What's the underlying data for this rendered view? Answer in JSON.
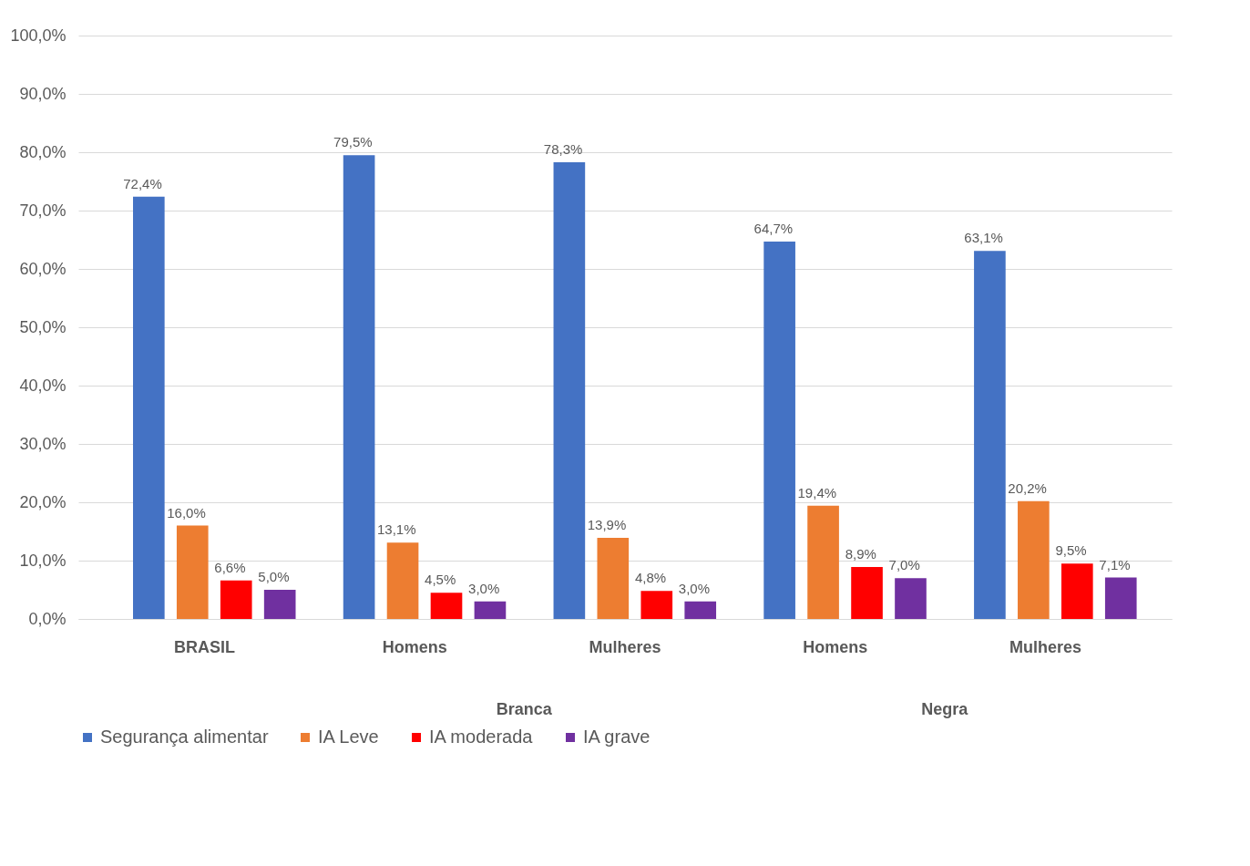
{
  "chart_data": {
    "type": "bar",
    "categories": [
      "BRASIL",
      "Homens",
      "Mulheres",
      "Homens",
      "Mulheres"
    ],
    "series": [
      {
        "name": "Segurança alimentar",
        "color": "#4472c4",
        "values": [
          72.4,
          79.5,
          78.3,
          64.7,
          63.1
        ],
        "value_labels": [
          "72,4%",
          "79,5%",
          "78,3%",
          "64,7%",
          "63,1%"
        ]
      },
      {
        "name": "IA Leve",
        "color": "#ed7d31",
        "values": [
          16.0,
          13.1,
          13.9,
          19.4,
          20.2
        ],
        "value_labels": [
          "16,0%",
          "13,1%",
          "13,9%",
          "19,4%",
          "20,2%"
        ]
      },
      {
        "name": "IA moderada",
        "color": "#ff0000",
        "values": [
          6.6,
          4.5,
          4.8,
          8.9,
          9.5
        ],
        "value_labels": [
          "6,6%",
          "4,5%",
          "4,8%",
          "8,9%",
          "9,5%"
        ]
      },
      {
        "name": "IA grave",
        "color": "#7030a0",
        "values": [
          5.0,
          3.0,
          3.0,
          7.0,
          7.1
        ],
        "value_labels": [
          "5,0%",
          "3,0%",
          "3,0%",
          "7,0%",
          "7,1%"
        ]
      }
    ],
    "annotations": [
      "Branca",
      "Negra"
    ],
    "ylim": [
      0,
      100
    ],
    "yticks": [
      {
        "value": 0,
        "label": "0,0%"
      },
      {
        "value": 10,
        "label": "10,0%"
      },
      {
        "value": 20,
        "label": "20,0%"
      },
      {
        "value": 30,
        "label": "30,0%"
      },
      {
        "value": 40,
        "label": "40,0%"
      },
      {
        "value": 50,
        "label": "50,0%"
      },
      {
        "value": 60,
        "label": "60,0%"
      },
      {
        "value": 70,
        "label": "70,0%"
      },
      {
        "value": 80,
        "label": "80,0%"
      },
      {
        "value": 90,
        "label": "90,0%"
      },
      {
        "value": 100,
        "label": "100,0%"
      }
    ],
    "grid": "y",
    "legend": "bottom"
  }
}
